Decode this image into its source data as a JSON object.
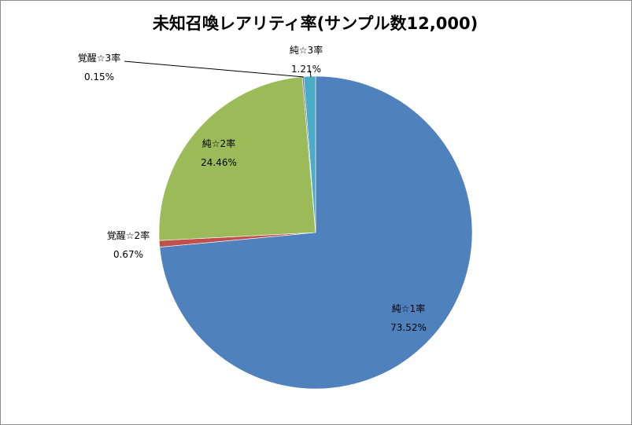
{
  "chart_data": {
    "type": "pie",
    "title": "未知召喚レアリティ率(サンプル数12,000)",
    "slices": [
      {
        "label": "純☆1率",
        "value": 73.52,
        "percent_label": "73.52%",
        "color": "#4f81bd"
      },
      {
        "label": "覚醒☆2率",
        "value": 0.67,
        "percent_label": "0.67%",
        "color": "#c0504d"
      },
      {
        "label": "純☆2率",
        "value": 24.46,
        "percent_label": "24.46%",
        "color": "#9bbb59"
      },
      {
        "label": "覚醒☆3率",
        "value": 0.15,
        "percent_label": "0.15%",
        "color": "#8064a2"
      },
      {
        "label": "純☆3率",
        "value": 1.21,
        "percent_label": "1.21%",
        "color": "#4bacc6"
      }
    ],
    "start_angle_deg": 0,
    "direction": "clockwise",
    "legend": "none",
    "data_labels": "category-name-and-percent"
  }
}
